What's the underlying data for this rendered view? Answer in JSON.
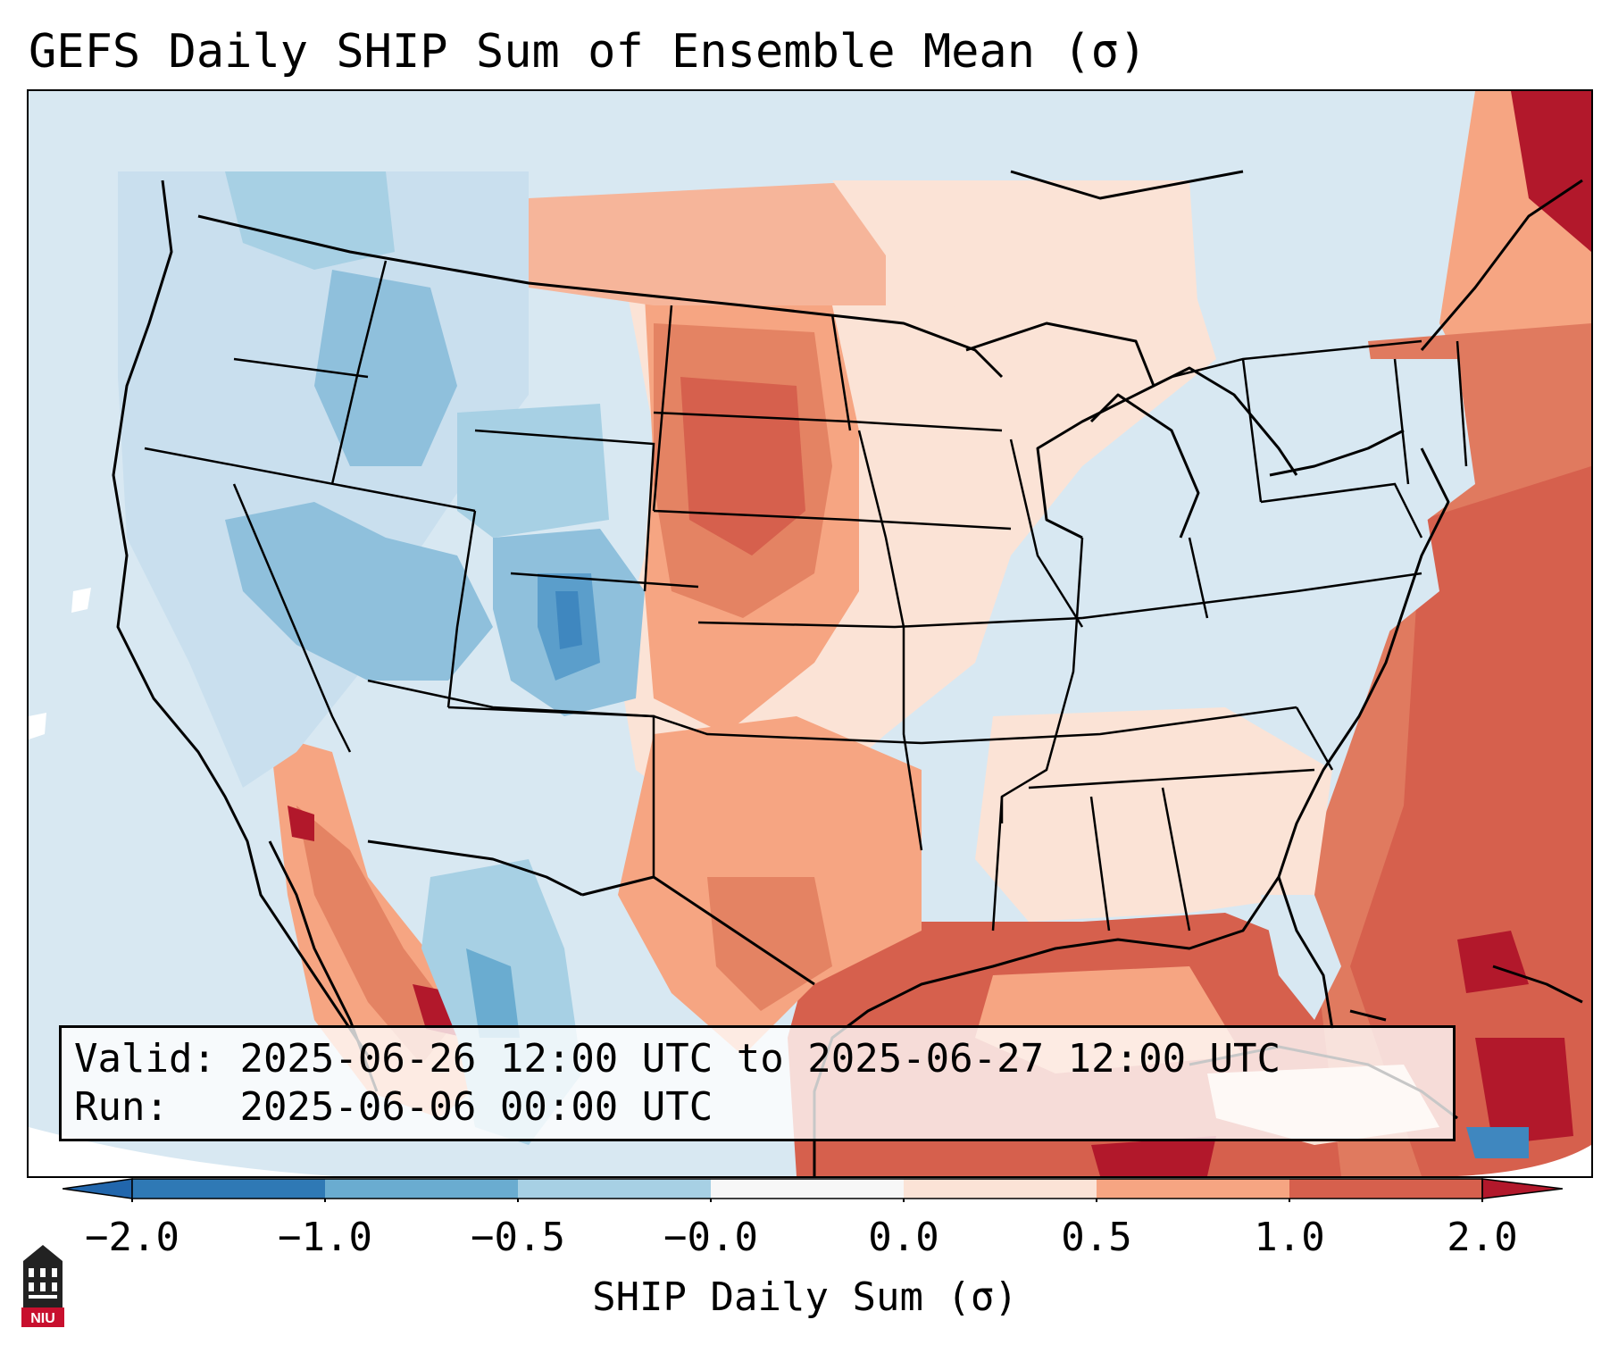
{
  "title": "GEFS Daily SHIP Sum of Ensemble Mean (σ)",
  "info": {
    "valid_label": "Valid:",
    "valid_value": "2025-06-26 12:00 UTC to 2025-06-27 12:00 UTC",
    "run_label": "Run:",
    "run_value": "2025-06-06 00:00 UTC"
  },
  "colorbar": {
    "label": "SHIP Daily Sum (σ)",
    "ticks": [
      "−2.0",
      "−1.0",
      "−0.5",
      "−0.0",
      "0.0",
      "0.5",
      "1.0",
      "2.0"
    ],
    "colors": [
      "#2f79b5",
      "#6aacd0",
      "#a7d0e4",
      "#d8e8f2",
      "#fbe3d6",
      "#f6a582",
      "#d6604d",
      "#b2182b"
    ],
    "extend_low_color": "#2166ac",
    "extend_high_color": "#b2182b"
  },
  "logo": {
    "text": "NIU",
    "icon": "university-building-icon"
  },
  "map": {
    "background": "#d8e8f2",
    "regions": [
      {
        "name": "Pacific Northwest",
        "class": "-0.5 to -0.0"
      },
      {
        "name": "Great Basin",
        "class": "-1.0 to -0.5"
      },
      {
        "name": "Colorado Rockies",
        "class": "-2.0 to -1.0"
      },
      {
        "name": "Northern Plains",
        "class": "0.5 to 1.0"
      },
      {
        "name": "Gulf of Mexico",
        "class": "1.0 to 2.0"
      },
      {
        "name": "Western Atlantic",
        "class": "1.0 to 2.0"
      },
      {
        "name": "Ohio Valley & Northeast",
        "class": "-0.5 to -0.0"
      }
    ]
  }
}
